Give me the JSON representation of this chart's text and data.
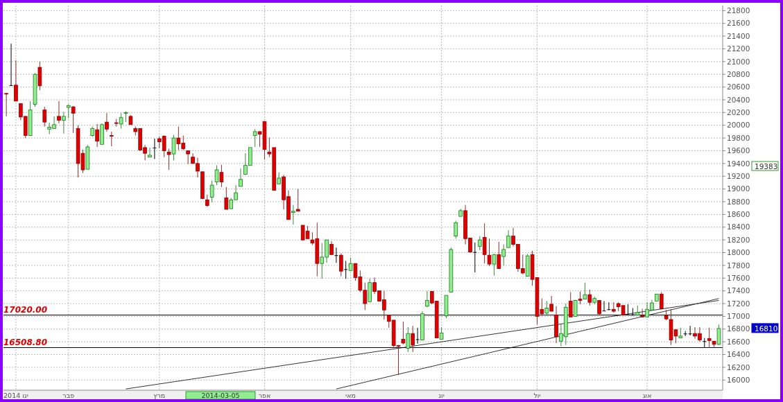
{
  "chart_data": {
    "type": "candlestick",
    "categories": [
      null,
      null,
      "ינו 2014",
      null,
      null,
      null,
      null,
      null,
      null,
      null,
      null,
      null,
      null,
      "פבר",
      null,
      null,
      null,
      null,
      null,
      null,
      null,
      null,
      null,
      null,
      null,
      null,
      null,
      null,
      null,
      null,
      null,
      null,
      "מרץ",
      null,
      null,
      null,
      null,
      null,
      null,
      null,
      null,
      null,
      null,
      null,
      null,
      null,
      null,
      null,
      null,
      null,
      null,
      null,
      null,
      null,
      "אפר",
      null,
      null,
      null,
      null,
      null,
      null,
      null,
      null,
      null,
      null,
      null,
      null,
      null,
      null,
      null,
      null,
      null,
      "מאי",
      null,
      null,
      null,
      null,
      null,
      null,
      null,
      null,
      null,
      null,
      null,
      null,
      null,
      null,
      null,
      null,
      null,
      null,
      "יונ",
      null,
      null,
      null,
      null,
      null,
      null,
      null,
      null,
      null,
      null,
      null,
      null,
      null,
      null,
      null,
      null,
      null,
      null,
      null,
      "יול",
      null,
      null,
      null,
      null,
      null,
      null,
      null,
      null,
      null,
      null,
      null,
      null,
      null,
      null,
      null,
      null,
      null,
      null,
      null,
      null,
      null,
      null,
      "אוג",
      null,
      null,
      null,
      null,
      null,
      null,
      null,
      null,
      null,
      null,
      null,
      null,
      null,
      null,
      null
    ],
    "ohlc": [
      [
        20500,
        20510,
        20140,
        20490
      ],
      [
        20630,
        21280,
        20620,
        20630
      ],
      [
        20630,
        21020,
        20380,
        20380
      ],
      [
        20340,
        20340,
        20080,
        20130
      ],
      [
        20140,
        20140,
        19800,
        19840
      ],
      [
        19840,
        20380,
        19840,
        20240
      ],
      [
        20330,
        20820,
        20290,
        20800
      ],
      [
        20910,
        21000,
        20550,
        20620
      ],
      [
        20240,
        20290,
        19980,
        20050
      ],
      [
        19940,
        20040,
        19860,
        19970
      ],
      [
        19950,
        20140,
        19950,
        20010
      ],
      [
        20140,
        20380,
        20030,
        20080
      ],
      [
        20080,
        20210,
        19870,
        20140
      ],
      [
        20280,
        20330,
        20110,
        20310
      ],
      [
        20290,
        20300,
        19880,
        20190
      ],
      [
        19950,
        20000,
        19180,
        19400
      ],
      [
        19560,
        19620,
        19250,
        19300
      ],
      [
        19310,
        19690,
        19310,
        19660
      ],
      [
        19840,
        19980,
        19820,
        19950
      ],
      [
        19930,
        20020,
        19660,
        19750
      ],
      [
        19700,
        20030,
        19700,
        20010
      ],
      [
        20050,
        20190,
        19900,
        19940
      ],
      [
        19840,
        19900,
        19670,
        19830
      ],
      [
        20040,
        20100,
        19980,
        20030
      ],
      [
        20020,
        20190,
        19950,
        20120
      ],
      [
        20190,
        20220,
        20050,
        20200
      ],
      [
        20140,
        20160,
        20010,
        20010
      ],
      [
        19950,
        19980,
        19840,
        19900
      ],
      [
        19950,
        19950,
        19600,
        19610
      ],
      [
        19650,
        19690,
        19450,
        19560
      ],
      [
        19500,
        19650,
        19500,
        19530
      ],
      [
        19650,
        19790,
        19470,
        19650
      ],
      [
        19790,
        19820,
        19640,
        19740
      ],
      [
        19830,
        19840,
        19500,
        19600
      ],
      [
        19580,
        19630,
        19300,
        19540
      ],
      [
        19550,
        19850,
        19450,
        19800
      ],
      [
        19800,
        19980,
        19610,
        19710
      ],
      [
        19720,
        19840,
        19610,
        19630
      ],
      [
        19600,
        19600,
        19390,
        19550
      ],
      [
        19500,
        19560,
        19400,
        19400
      ],
      [
        19400,
        19490,
        19180,
        19280
      ],
      [
        19270,
        19270,
        18850,
        18850
      ],
      [
        18830,
        18910,
        18720,
        18740
      ],
      [
        18870,
        19130,
        18790,
        19060
      ],
      [
        19110,
        19370,
        19060,
        19300
      ],
      [
        19260,
        19380,
        19030,
        19110
      ],
      [
        18860,
        19030,
        18680,
        18680
      ],
      [
        18690,
        18860,
        18690,
        18830
      ],
      [
        18830,
        19060,
        18830,
        18940
      ],
      [
        19040,
        19320,
        19040,
        19150
      ],
      [
        19230,
        19560,
        19230,
        19370
      ],
      [
        19370,
        19650,
        19370,
        19650
      ],
      [
        19840,
        19940,
        19660,
        19900
      ],
      [
        19900,
        19910,
        19660,
        19860
      ],
      [
        20060,
        20060,
        19460,
        19620
      ],
      [
        19580,
        19810,
        19500,
        19550
      ],
      [
        19650,
        19650,
        18980,
        18980
      ],
      [
        19080,
        19260,
        19080,
        19170
      ],
      [
        19190,
        19220,
        18680,
        18830
      ],
      [
        18880,
        18980,
        18520,
        18520
      ],
      [
        18630,
        18750,
        18440,
        18650
      ],
      [
        18680,
        19000,
        18650,
        18650
      ],
      [
        18430,
        18430,
        18190,
        18200
      ],
      [
        18340,
        18420,
        18220,
        18220
      ],
      [
        18200,
        18320,
        18120,
        18150
      ],
      [
        18220,
        18470,
        17630,
        17830
      ],
      [
        17830,
        18150,
        17590,
        17930
      ],
      [
        17930,
        18200,
        17840,
        18200
      ],
      [
        18130,
        18180,
        17970,
        17970
      ],
      [
        17960,
        18080,
        17840,
        17960
      ],
      [
        17960,
        17990,
        17630,
        17710
      ],
      [
        17740,
        17870,
        17590,
        17740
      ],
      [
        17720,
        17920,
        17720,
        17830
      ],
      [
        17830,
        17830,
        17560,
        17610
      ],
      [
        17620,
        17720,
        17380,
        17410
      ],
      [
        17410,
        17530,
        17100,
        17200
      ],
      [
        17230,
        17590,
        17230,
        17530
      ],
      [
        17530,
        17610,
        17350,
        17390
      ],
      [
        17400,
        17400,
        17230,
        17240
      ],
      [
        17260,
        17400,
        16950,
        17100
      ],
      [
        17020,
        17020,
        16820,
        16920
      ],
      [
        16940,
        16940,
        16520,
        16540
      ],
      [
        16540,
        16550,
        16080,
        16530
      ],
      [
        16640,
        16920,
        16560,
        16580
      ],
      [
        16500,
        16830,
        16440,
        16730
      ],
      [
        16730,
        16850,
        16440,
        16550
      ],
      [
        16640,
        16820,
        16570,
        16640
      ],
      [
        16630,
        17080,
        16630,
        17040
      ],
      [
        17160,
        17400,
        17140,
        17250
      ],
      [
        17390,
        17390,
        17190,
        17210
      ],
      [
        17240,
        17240,
        16660,
        16660
      ],
      [
        16640,
        16830,
        16640,
        16740
      ],
      [
        17010,
        17330,
        16970,
        17330
      ],
      [
        17380,
        18080,
        17380,
        18050
      ],
      [
        18260,
        18500,
        18220,
        18470
      ],
      [
        18570,
        18690,
        18570,
        18660
      ],
      [
        18660,
        18750,
        18130,
        18220
      ],
      [
        18230,
        18230,
        18000,
        18010
      ],
      [
        18010,
        18160,
        17690,
        18010
      ],
      [
        18100,
        18260,
        18040,
        18200
      ],
      [
        18240,
        18460,
        17830,
        17970
      ],
      [
        17960,
        18220,
        17790,
        17820
      ],
      [
        17820,
        17980,
        17640,
        17970
      ],
      [
        17970,
        18170,
        17750,
        17750
      ],
      [
        17940,
        18130,
        17800,
        18050
      ],
      [
        18080,
        18350,
        18080,
        18260
      ],
      [
        18260,
        18390,
        18100,
        18130
      ],
      [
        18130,
        18130,
        17700,
        17750
      ],
      [
        17750,
        17970,
        17660,
        17680
      ],
      [
        17630,
        17980,
        17630,
        17950
      ],
      [
        17970,
        18030,
        17480,
        17580
      ],
      [
        17610,
        17610,
        16870,
        17000
      ],
      [
        17110,
        17280,
        17010,
        17040
      ],
      [
        17050,
        17240,
        17010,
        17130
      ],
      [
        17190,
        17320,
        17080,
        17080
      ],
      [
        17020,
        17160,
        16580,
        16680
      ],
      [
        16610,
        16880,
        16530,
        16730
      ],
      [
        16680,
        17200,
        16550,
        17140
      ],
      [
        17240,
        17380,
        16990,
        16990
      ],
      [
        17000,
        17260,
        17000,
        17250
      ],
      [
        17270,
        17390,
        17190,
        17250
      ],
      [
        17270,
        17530,
        17270,
        17340
      ],
      [
        17340,
        17420,
        17170,
        17220
      ],
      [
        17220,
        17310,
        17190,
        17280
      ],
      [
        17250,
        17250,
        17020,
        17040
      ],
      [
        17090,
        17240,
        17090,
        17090
      ],
      [
        17110,
        17220,
        17100,
        17110
      ],
      [
        17110,
        17220,
        17060,
        17080
      ],
      [
        17200,
        17220,
        17080,
        17150
      ],
      [
        17170,
        17170,
        17010,
        17020
      ],
      [
        17030,
        17190,
        17020,
        17030
      ],
      [
        17030,
        17130,
        17010,
        17030
      ],
      [
        17020,
        17170,
        17010,
        17060
      ],
      [
        17010,
        17120,
        16990,
        16990
      ],
      [
        16990,
        17220,
        16990,
        17110
      ],
      [
        17100,
        17260,
        17100,
        17210
      ],
      [
        17240,
        17350,
        17240,
        17350
      ],
      [
        17350,
        17380,
        17110,
        17120
      ],
      [
        17010,
        17100,
        16940,
        16960
      ],
      [
        16950,
        17110,
        16550,
        16630
      ],
      [
        16790,
        16790,
        16580,
        16690
      ],
      [
        16660,
        16820,
        16660,
        16690
      ],
      [
        16730,
        16770,
        16690,
        16730
      ],
      [
        16730,
        16850,
        16700,
        16730
      ],
      [
        16730,
        16830,
        16650,
        16690
      ],
      [
        16730,
        16830,
        16600,
        16630
      ],
      [
        16610,
        16660,
        16510,
        16610
      ],
      [
        16650,
        16820,
        16510,
        16620
      ],
      [
        16610,
        16610,
        16520,
        16560
      ],
      [
        16560,
        16870,
        16550,
        16810
      ]
    ],
    "series": [
      {
        "type": "line",
        "color": "#333333",
        "values": [
          null,
          null,
          null,
          null,
          null,
          null,
          null,
          null,
          null,
          null,
          null,
          null,
          null,
          null,
          null,
          null,
          null,
          null,
          null,
          null,
          null,
          null,
          null,
          null,
          null,
          15860,
          null,
          null,
          null,
          null,
          null,
          null,
          null,
          null,
          null,
          null,
          null,
          null,
          null,
          null,
          null,
          null,
          null,
          null,
          null,
          null,
          null,
          null,
          null,
          null,
          null,
          null,
          null,
          null,
          null,
          null,
          null,
          null,
          null,
          null,
          null,
          null,
          null,
          null,
          null,
          null,
          null,
          null,
          null,
          null,
          null,
          null,
          null,
          null,
          null,
          null,
          null,
          null,
          null,
          null,
          null,
          null,
          null,
          null,
          null,
          null,
          null,
          null,
          null,
          null,
          null,
          null,
          null,
          null,
          null,
          null,
          null,
          null,
          null,
          null,
          null,
          null,
          null,
          null,
          null,
          null,
          null,
          null,
          null,
          null,
          null,
          null,
          null,
          null,
          null,
          null,
          null,
          null,
          null,
          null,
          null,
          null,
          null,
          null,
          null,
          null,
          null,
          null,
          null,
          null,
          null,
          null,
          null,
          null,
          null,
          null,
          null,
          null,
          null,
          null,
          null,
          null,
          null,
          null,
          null,
          null,
          null,
          null,
          null,
          17250
        ]
      },
      {
        "type": "line",
        "color": "#333333",
        "values": [
          null,
          null,
          null,
          null,
          null,
          null,
          null,
          null,
          null,
          null,
          null,
          null,
          null,
          null,
          null,
          null,
          null,
          null,
          null,
          null,
          null,
          null,
          null,
          null,
          null,
          null,
          null,
          null,
          null,
          null,
          null,
          null,
          null,
          null,
          null,
          null,
          null,
          null,
          null,
          null,
          null,
          null,
          null,
          null,
          null,
          null,
          null,
          null,
          null,
          null,
          null,
          null,
          null,
          null,
          null,
          null,
          null,
          null,
          null,
          null,
          null,
          null,
          null,
          null,
          null,
          null,
          null,
          null,
          null,
          15860,
          null,
          null,
          null,
          null,
          null,
          null,
          null,
          null,
          null,
          null,
          null,
          null,
          null,
          null,
          null,
          null,
          null,
          null,
          null,
          null,
          null,
          null,
          null,
          null,
          null,
          null,
          null,
          null,
          null,
          null,
          null,
          null,
          null,
          null,
          null,
          null,
          null,
          null,
          null,
          null,
          null,
          null,
          null,
          null,
          null,
          null,
          null,
          null,
          null,
          null,
          null,
          null,
          null,
          null,
          null,
          null,
          null,
          null,
          null,
          null,
          null,
          null,
          null,
          null,
          null,
          null,
          null,
          null,
          null,
          null,
          null,
          null,
          null,
          null,
          null,
          null,
          null,
          null,
          null,
          17280
        ]
      }
    ],
    "ylim": [
      15840,
      21880
    ],
    "yticks": [
      16000,
      16200,
      16400,
      16600,
      16800,
      17000,
      17200,
      17400,
      17600,
      17800,
      18000,
      18200,
      18400,
      18600,
      18800,
      19000,
      19200,
      19400,
      19600,
      19800,
      20000,
      20200,
      20400,
      20600,
      20800,
      21000,
      21200,
      21400,
      21600,
      21800
    ],
    "grid": true,
    "ref_lines": [
      {
        "axis": "y",
        "value": 17020,
        "label": "17020.00",
        "color": "#000000"
      },
      {
        "axis": "y",
        "value": 16508.8,
        "label": "16508.80",
        "color": "#000000"
      }
    ],
    "annotations": [
      "16810",
      "19383",
      "2014-03-05"
    ]
  }
}
